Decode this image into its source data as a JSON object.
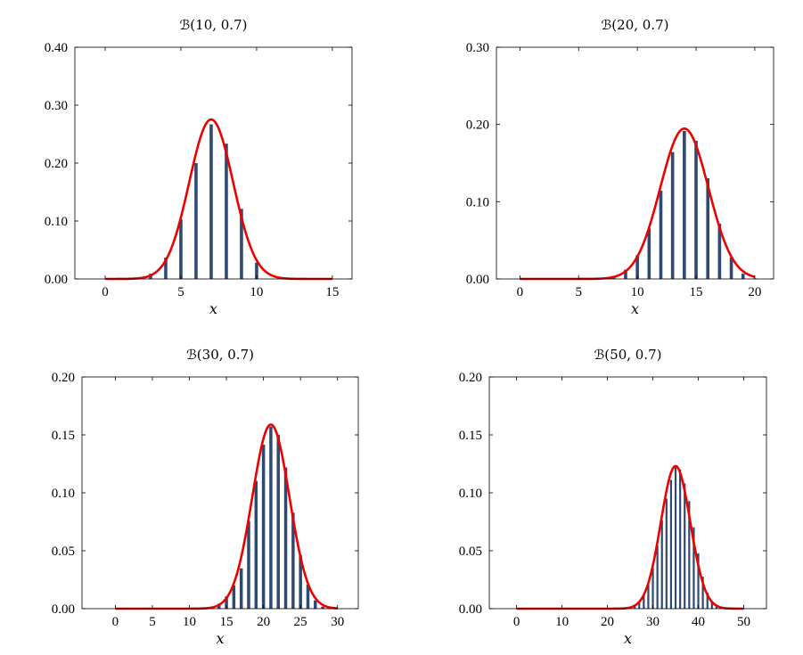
{
  "chart_data": [
    {
      "type": "bar",
      "title": "ℬ(10, 0.7)",
      "xlabel": "x",
      "ylabel": "",
      "n": 10,
      "p": 0.7,
      "xlim": [
        -2,
        16.3
      ],
      "ylim": [
        0,
        0.4
      ],
      "xticks": [
        0,
        5,
        10,
        15
      ],
      "yticks": [
        0.0,
        0.1,
        0.2,
        0.3,
        0.4
      ],
      "ytick_labels": [
        "0.00",
        "0.10",
        "0.20",
        "0.30",
        "0.40"
      ],
      "x": [
        0,
        1,
        2,
        3,
        4,
        5,
        6,
        7,
        8,
        9,
        10
      ],
      "values": [
        0.0,
        0.0001,
        0.0014,
        0.009,
        0.0368,
        0.1029,
        0.2001,
        0.2668,
        0.2335,
        0.1211,
        0.0282
      ],
      "curve": {
        "type": "normal",
        "mean": 7.0,
        "sd": 1.449,
        "x_range": [
          0,
          15
        ]
      },
      "colors": {
        "bars": "#2f4a72",
        "curve": "#ee0000"
      }
    },
    {
      "type": "bar",
      "title": "ℬ(20, 0.7)",
      "xlabel": "x",
      "ylabel": "",
      "n": 20,
      "p": 0.7,
      "xlim": [
        -2,
        21.6
      ],
      "ylim": [
        0,
        0.3
      ],
      "xticks": [
        0,
        5,
        10,
        15,
        20
      ],
      "yticks": [
        0.0,
        0.1,
        0.2,
        0.3
      ],
      "ytick_labels": [
        "0.00",
        "0.10",
        "0.20",
        "0.30"
      ],
      "x": [
        0,
        1,
        2,
        3,
        4,
        5,
        6,
        7,
        8,
        9,
        10,
        11,
        12,
        13,
        14,
        15,
        16,
        17,
        18,
        19,
        20
      ],
      "values": [
        0,
        0,
        0,
        0,
        0,
        0,
        0.0002,
        0.001,
        0.0039,
        0.012,
        0.0308,
        0.0654,
        0.1144,
        0.1643,
        0.1916,
        0.1789,
        0.1304,
        0.0716,
        0.0278,
        0.0068,
        0.0008
      ],
      "curve": {
        "type": "normal",
        "mean": 14.0,
        "sd": 2.049,
        "x_range": [
          0,
          20
        ]
      },
      "colors": {
        "bars": "#2f4a72",
        "curve": "#ee0000"
      }
    },
    {
      "type": "bar",
      "title": "ℬ(30, 0.7)",
      "xlabel": "x",
      "ylabel": "",
      "n": 30,
      "p": 0.7,
      "xlim": [
        -4.5,
        32.8
      ],
      "ylim": [
        0,
        0.2
      ],
      "xticks": [
        0,
        5,
        10,
        15,
        20,
        25,
        30
      ],
      "yticks": [
        0.0,
        0.05,
        0.1,
        0.15,
        0.2
      ],
      "ytick_labels": [
        "0.00",
        "0.05",
        "0.10",
        "0.15",
        "0.20"
      ],
      "x": [
        0,
        1,
        2,
        3,
        4,
        5,
        6,
        7,
        8,
        9,
        10,
        11,
        12,
        13,
        14,
        15,
        16,
        17,
        18,
        19,
        20,
        21,
        22,
        23,
        24,
        25,
        26,
        27,
        28,
        29,
        30
      ],
      "values": [
        0,
        0,
        0,
        0,
        0,
        0,
        0,
        0,
        0,
        0,
        0,
        0,
        0.0006,
        0.0015,
        0.0042,
        0.0106,
        0.0201,
        0.0348,
        0.0757,
        0.1103,
        0.1416,
        0.1573,
        0.1502,
        0.1219,
        0.0829,
        0.0464,
        0.0208,
        0.0072,
        0.0018,
        0.0003,
        0.0
      ],
      "curve": {
        "type": "normal",
        "mean": 21.0,
        "sd": 2.51,
        "x_range": [
          0,
          30
        ]
      },
      "colors": {
        "bars": "#2f4a72",
        "curve": "#ee0000"
      }
    },
    {
      "type": "bar",
      "title": "ℬ(50, 0.7)",
      "xlabel": "x",
      "ylabel": "",
      "n": 50,
      "p": 0.7,
      "xlim": [
        -6,
        55
      ],
      "ylim": [
        0,
        0.2
      ],
      "xticks": [
        0,
        10,
        20,
        30,
        40,
        50
      ],
      "yticks": [
        0.0,
        0.05,
        0.1,
        0.15,
        0.2
      ],
      "ytick_labels": [
        "0.00",
        "0.05",
        "0.10",
        "0.15",
        "0.20"
      ],
      "x": [
        26,
        27,
        28,
        29,
        30,
        31,
        32,
        33,
        34,
        35,
        36,
        37,
        38,
        39,
        40,
        41,
        42,
        43,
        44,
        45
      ],
      "values": [
        0.0027,
        0.0058,
        0.0114,
        0.0207,
        0.0351,
        0.0546,
        0.0764,
        0.0951,
        0.1111,
        0.1223,
        0.1201,
        0.1081,
        0.0929,
        0.0703,
        0.0478,
        0.0276,
        0.0139,
        0.0061,
        0.0022,
        0.0007
      ],
      "curve": {
        "type": "normal",
        "mean": 35.0,
        "sd": 3.24,
        "x_range": [
          0,
          50
        ]
      },
      "colors": {
        "bars": "#2f4a72",
        "curve": "#ee0000"
      }
    }
  ]
}
